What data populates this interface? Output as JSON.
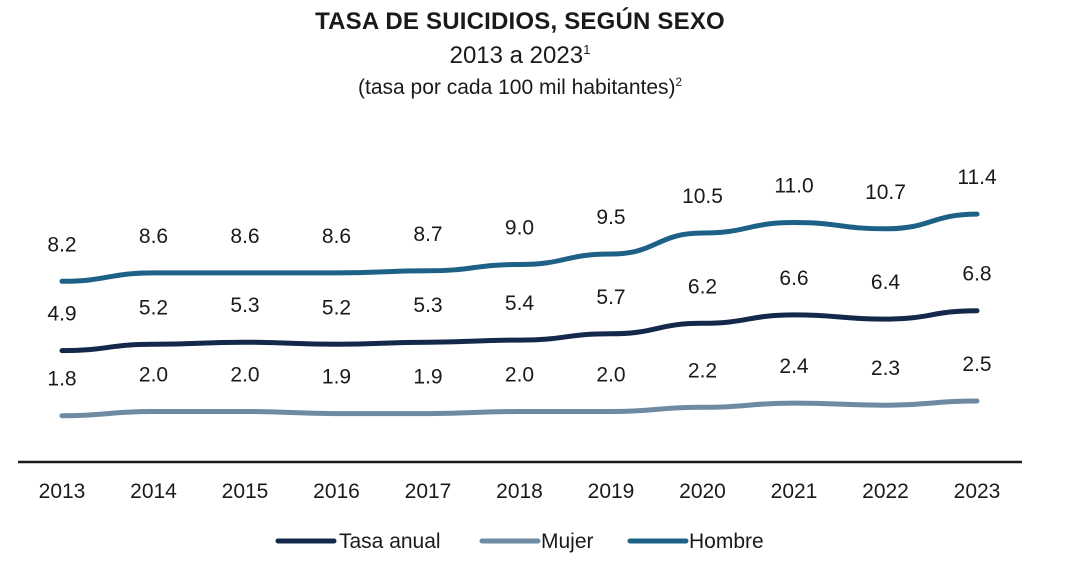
{
  "chart_data": {
    "type": "line",
    "title": "TASA DE SUICIDIOS, SEGÚN SEXO",
    "subtitle": "2013 a 2023",
    "subtitle_note": "1",
    "unit_label": "(tasa por cada 100 mil habitantes)",
    "unit_note": "2",
    "categories": [
      "2013",
      "2014",
      "2015",
      "2016",
      "2017",
      "2018",
      "2019",
      "2020",
      "2021",
      "2022",
      "2023"
    ],
    "ylim": [
      0,
      12
    ],
    "grid": false,
    "legend_position": "bottom",
    "series": [
      {
        "name": "Tasa anual",
        "color": "#14284b",
        "values": [
          4.9,
          5.2,
          5.3,
          5.2,
          5.3,
          5.4,
          5.7,
          6.2,
          6.6,
          6.4,
          6.8
        ],
        "labels": [
          "4.9",
          "5.2",
          "5.3",
          "5.2",
          "5.3",
          "5.4",
          "5.7",
          "6.2",
          "6.6",
          "6.4",
          "6.8"
        ]
      },
      {
        "name": "Mujer",
        "color": "#6f8aa3",
        "values": [
          1.8,
          2.0,
          2.0,
          1.9,
          1.9,
          2.0,
          2.0,
          2.2,
          2.4,
          2.3,
          2.5
        ],
        "labels": [
          "1.8",
          "2.0",
          "2.0",
          "1.9",
          "1.9",
          "2.0",
          "2.0",
          "2.2",
          "2.4",
          "2.3",
          "2.5"
        ]
      },
      {
        "name": "Hombre",
        "color": "#1d6286",
        "values": [
          8.2,
          8.6,
          8.6,
          8.6,
          8.7,
          9.0,
          9.5,
          10.5,
          11.0,
          10.7,
          11.4
        ],
        "labels": [
          "8.2",
          "8.6",
          "8.6",
          "8.6",
          "8.7",
          "9.0",
          "9.5",
          "10.5",
          "11.0",
          "10.7",
          "11.4"
        ]
      }
    ]
  }
}
